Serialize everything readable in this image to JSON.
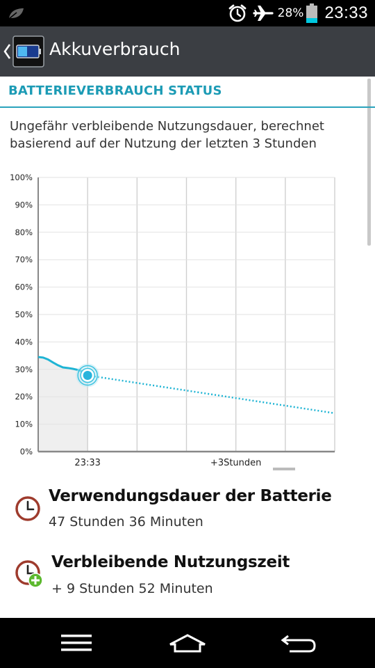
{
  "status_bar": {
    "battery_percent": "28%",
    "time": "23:33",
    "battery_level": 0.28,
    "battery_color": "#00c8e0",
    "icons": [
      "leaf-icon",
      "alarm-icon",
      "airplane-mode-icon",
      "battery-icon"
    ]
  },
  "action_bar": {
    "title": "Akkuverbrauch",
    "icons": [
      "back-chevron-icon",
      "battery-app-icon"
    ]
  },
  "section": {
    "title": "BATTERIEVERBRAUCH STATUS",
    "accent": "#1c9bb5"
  },
  "description": "Ungefähr verbleibende Nutzungsdauer, berechnet basierend auf der Nutzung der letzten 3 Stunden",
  "chart_data": {
    "type": "line",
    "y_ticks": [
      "100%",
      "90%",
      "80%",
      "70%",
      "60%",
      "50%",
      "40%",
      "30%",
      "20%",
      "10%",
      "0%"
    ],
    "x_labels": [
      "23:33",
      "+3Stunden"
    ],
    "ylim": [
      0,
      100
    ],
    "grid": true,
    "series": [
      {
        "style": "solid",
        "color": "#1fb4d4",
        "x": [
          -1.0,
          -0.9,
          -0.8,
          -0.7,
          -0.6,
          -0.5,
          -0.4,
          -0.3,
          -0.2,
          -0.1,
          0.0
        ],
        "values": [
          34.5,
          34.3,
          33.6,
          32.5,
          31.5,
          30.7,
          30.5,
          30.2,
          29.8,
          29.2,
          27.8
        ]
      },
      {
        "style": "dotted",
        "color": "#1fb4d4",
        "x": [
          0.0,
          5.0
        ],
        "values": [
          27.8,
          14.0
        ]
      }
    ],
    "current_point": {
      "x": 0.0,
      "value": 27.8
    }
  },
  "info": [
    {
      "heading": "Verwendungsdauer der Batterie",
      "value": "47 Stunden 36 Minuten",
      "icon": "clock-icon"
    },
    {
      "heading": "Verbleibende Nutzungszeit",
      "value": "+ 9 Stunden 52 Minuten",
      "icon": "clock-plus-icon"
    }
  ],
  "nav_bar": {
    "icons": [
      "menu-icon",
      "home-icon",
      "back-icon"
    ]
  }
}
